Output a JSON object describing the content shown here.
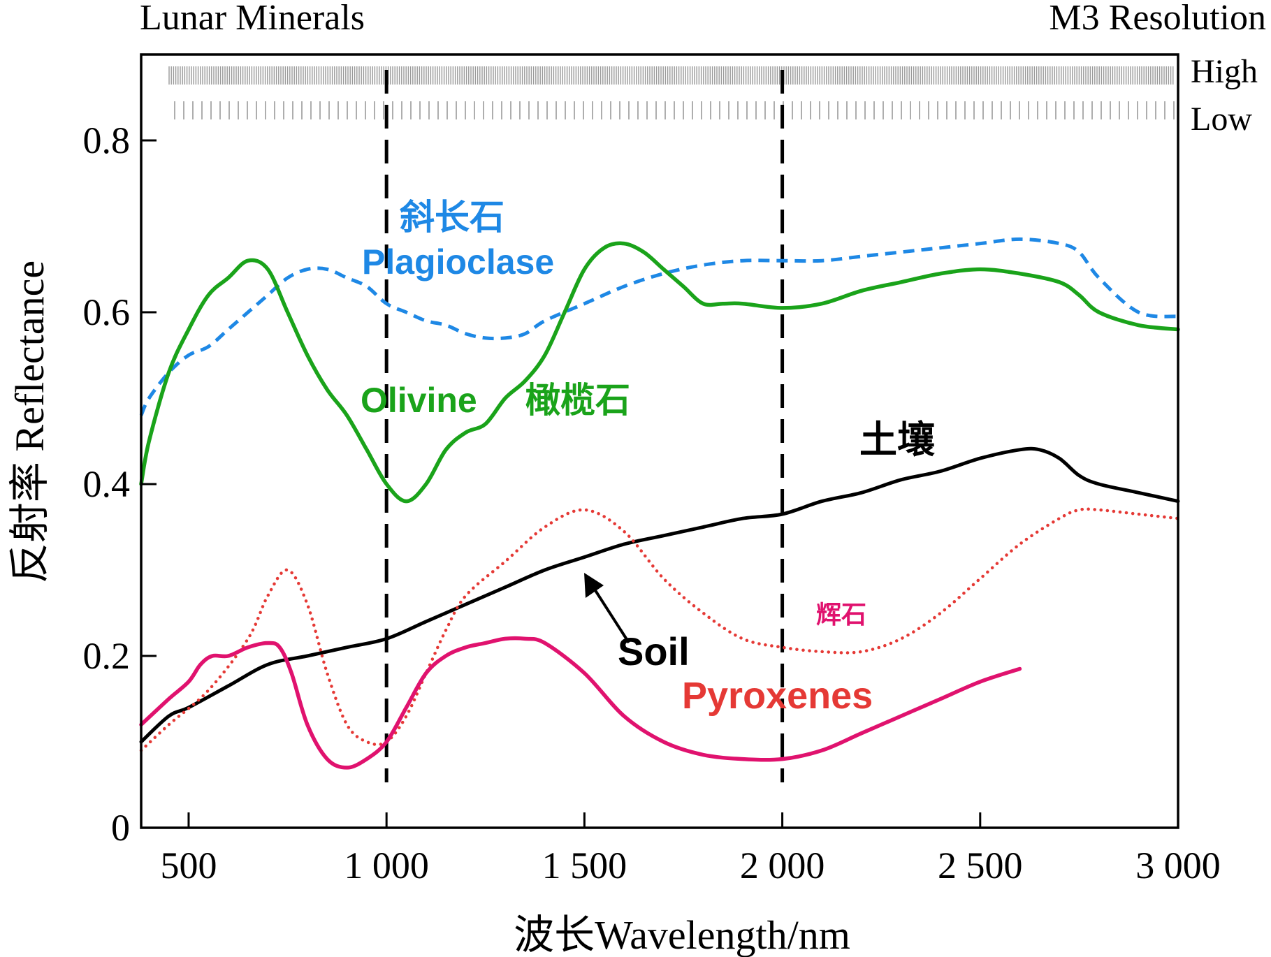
{
  "chart_data": {
    "type": "line",
    "title_left": "Lunar Minerals",
    "title_right": "M3 Resolution",
    "xlabel": "波长Wavelength/nm",
    "ylabel": "反射率 Reflectance",
    "xlim": [
      380,
      3000
    ],
    "ylim": [
      0,
      0.9
    ],
    "xticks": [
      500,
      1000,
      1500,
      2000,
      2500,
      3000
    ],
    "xtick_labels": [
      "500",
      "1 000",
      "1 500",
      "2 000",
      "2 500",
      "3 000"
    ],
    "yticks": [
      0,
      0.2,
      0.4,
      0.6,
      0.8
    ],
    "ytick_labels": [
      "0",
      "0.2",
      "0.4",
      "0.6",
      "0.8"
    ],
    "vlines": [
      1000,
      2000
    ],
    "resolution_rows": [
      {
        "label": "High"
      },
      {
        "label": "Low"
      }
    ],
    "series": [
      {
        "name": "Plagioclase",
        "name_zh": "斜长石",
        "color": "#1e88e5",
        "style": "dashed",
        "x": [
          380,
          400,
          450,
          500,
          550,
          600,
          650,
          700,
          750,
          800,
          850,
          900,
          950,
          1000,
          1050,
          1100,
          1150,
          1200,
          1250,
          1300,
          1350,
          1400,
          1500,
          1600,
          1700,
          1800,
          1900,
          2000,
          2100,
          2200,
          2300,
          2400,
          2500,
          2600,
          2700,
          2750,
          2800,
          2900,
          3000
        ],
        "y": [
          0.48,
          0.5,
          0.53,
          0.55,
          0.56,
          0.58,
          0.6,
          0.62,
          0.64,
          0.65,
          0.65,
          0.64,
          0.63,
          0.61,
          0.6,
          0.59,
          0.585,
          0.575,
          0.57,
          0.57,
          0.575,
          0.59,
          0.61,
          0.63,
          0.645,
          0.655,
          0.66,
          0.66,
          0.66,
          0.665,
          0.67,
          0.675,
          0.68,
          0.685,
          0.68,
          0.67,
          0.64,
          0.6,
          0.595
        ]
      },
      {
        "name": "Olivine",
        "name_zh": "橄榄石",
        "color": "#1aa31a",
        "style": "solid",
        "x": [
          380,
          400,
          450,
          500,
          550,
          600,
          650,
          700,
          750,
          800,
          850,
          900,
          950,
          1000,
          1050,
          1100,
          1150,
          1200,
          1250,
          1300,
          1350,
          1400,
          1450,
          1500,
          1550,
          1600,
          1650,
          1700,
          1750,
          1800,
          1850,
          1900,
          2000,
          2100,
          2200,
          2300,
          2400,
          2500,
          2600,
          2700,
          2750,
          2800,
          2900,
          3000
        ],
        "y": [
          0.4,
          0.45,
          0.53,
          0.58,
          0.62,
          0.64,
          0.66,
          0.65,
          0.6,
          0.55,
          0.51,
          0.48,
          0.44,
          0.4,
          0.38,
          0.4,
          0.44,
          0.46,
          0.47,
          0.5,
          0.52,
          0.55,
          0.6,
          0.65,
          0.675,
          0.68,
          0.67,
          0.65,
          0.63,
          0.61,
          0.61,
          0.61,
          0.605,
          0.61,
          0.625,
          0.635,
          0.645,
          0.65,
          0.645,
          0.635,
          0.62,
          0.6,
          0.585,
          0.58
        ]
      },
      {
        "name": "Soil",
        "name_zh": "土壤",
        "color": "#000000",
        "style": "solid",
        "x": [
          380,
          450,
          500,
          600,
          700,
          800,
          900,
          1000,
          1100,
          1200,
          1300,
          1400,
          1500,
          1600,
          1700,
          1800,
          1900,
          2000,
          2100,
          2200,
          2300,
          2400,
          2500,
          2600,
          2650,
          2700,
          2750,
          2800,
          2900,
          3000
        ],
        "y": [
          0.1,
          0.13,
          0.14,
          0.165,
          0.19,
          0.2,
          0.21,
          0.22,
          0.24,
          0.26,
          0.28,
          0.3,
          0.315,
          0.33,
          0.34,
          0.35,
          0.36,
          0.365,
          0.38,
          0.39,
          0.405,
          0.415,
          0.43,
          0.44,
          0.44,
          0.43,
          0.41,
          0.4,
          0.39,
          0.38
        ]
      },
      {
        "name": "Pyroxenes",
        "name_zh": "辉石",
        "color": "#e53935",
        "style": "dotted",
        "x": [
          380,
          450,
          550,
          650,
          700,
          750,
          800,
          850,
          900,
          950,
          1000,
          1050,
          1100,
          1150,
          1200,
          1300,
          1400,
          1500,
          1600,
          1700,
          1800,
          1900,
          2000,
          2100,
          2200,
          2300,
          2400,
          2500,
          2600,
          2700,
          2750,
          2800,
          2900,
          3000
        ],
        "y": [
          0.09,
          0.12,
          0.16,
          0.22,
          0.27,
          0.3,
          0.26,
          0.18,
          0.12,
          0.1,
          0.1,
          0.13,
          0.18,
          0.23,
          0.27,
          0.31,
          0.35,
          0.37,
          0.345,
          0.29,
          0.25,
          0.22,
          0.21,
          0.205,
          0.205,
          0.22,
          0.25,
          0.29,
          0.33,
          0.36,
          0.37,
          0.37,
          0.365,
          0.36
        ]
      },
      {
        "name": "Pyroxenes (magenta)",
        "color": "#e0126e",
        "style": "solid",
        "x": [
          380,
          450,
          500,
          530,
          560,
          600,
          650,
          700,
          730,
          760,
          800,
          850,
          900,
          950,
          1000,
          1050,
          1100,
          1150,
          1200,
          1250,
          1300,
          1350,
          1400,
          1500,
          1600,
          1700,
          1800,
          1900,
          2000,
          2100,
          2200,
          2300,
          2400,
          2500,
          2600
        ],
        "y": [
          0.12,
          0.15,
          0.17,
          0.19,
          0.2,
          0.2,
          0.21,
          0.215,
          0.21,
          0.18,
          0.12,
          0.08,
          0.07,
          0.08,
          0.1,
          0.14,
          0.18,
          0.2,
          0.21,
          0.215,
          0.22,
          0.22,
          0.215,
          0.18,
          0.13,
          0.1,
          0.085,
          0.08,
          0.08,
          0.09,
          0.11,
          0.13,
          0.15,
          0.17,
          0.185
        ]
      }
    ],
    "annotations": [
      {
        "text": "斜长石",
        "x": 1030,
        "y": 0.71,
        "color": "#1e88e5"
      },
      {
        "text": "Plagioclase",
        "x": 930,
        "y": 0.65,
        "color": "#1e88e5"
      },
      {
        "text": "Olivine",
        "x": 890,
        "y": 0.49,
        "color": "#1aa31a"
      },
      {
        "text": "橄榄石",
        "x": 1720,
        "y": 0.49,
        "color": "#1aa31a"
      },
      {
        "text": "土壤",
        "x": 2300,
        "y": 0.44,
        "color": "#000000"
      },
      {
        "text": "辉石",
        "x": 2150,
        "y": 0.24,
        "color": "#e0126e"
      },
      {
        "text": "Soil",
        "x": 1410,
        "y": 0.19,
        "color": "#000000"
      },
      {
        "text": "Pyroxenes",
        "x": 1645,
        "y": 0.14,
        "color": "#e53935"
      }
    ]
  }
}
